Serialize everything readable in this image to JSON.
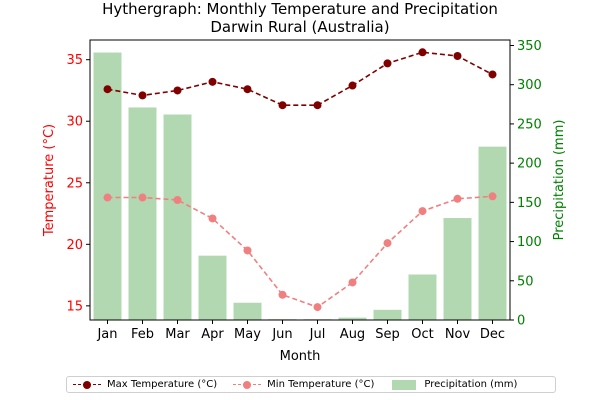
{
  "colors": {
    "max": "#800000",
    "min": "#f08080",
    "precip": "#b1d8b1",
    "temp_axis": "#ff0000",
    "precip_axis": "#008000",
    "axis": "#000000"
  },
  "chart_data": {
    "type": "bar+line",
    "title": "Hythergraph: Monthly Temperature and Precipitation",
    "subtitle": "Darwin Rural (Australia)",
    "xlabel": "Month",
    "ylabel_left": "Temperature (°C)",
    "ylabel_right": "Precipitation (mm)",
    "categories": [
      "Jan",
      "Feb",
      "Mar",
      "Apr",
      "May",
      "Jun",
      "Jul",
      "Aug",
      "Sep",
      "Oct",
      "Nov",
      "Dec"
    ],
    "ylim_left": [
      13.85,
      36.6
    ],
    "ylim_right": [
      0,
      357
    ],
    "yticks_left": [
      15,
      20,
      25,
      30,
      35
    ],
    "yticks_right": [
      0,
      50,
      100,
      150,
      200,
      250,
      300,
      350
    ],
    "series": [
      {
        "name": "Max Temperature (°C)",
        "axis": "left",
        "kind": "line",
        "values": [
          32.6,
          32.1,
          32.5,
          33.2,
          32.6,
          31.3,
          31.3,
          32.9,
          34.7,
          35.6,
          35.3,
          33.8
        ]
      },
      {
        "name": "Min Temperature (°C)",
        "axis": "left",
        "kind": "line",
        "values": [
          23.8,
          23.8,
          23.6,
          22.1,
          19.5,
          15.9,
          14.9,
          16.9,
          20.1,
          22.7,
          23.7,
          23.9
        ]
      },
      {
        "name": "Precipitation (mm)",
        "axis": "right",
        "kind": "bar",
        "values": [
          341,
          271,
          262,
          82,
          22,
          1,
          1,
          3,
          13,
          58,
          130,
          221
        ]
      }
    ]
  }
}
